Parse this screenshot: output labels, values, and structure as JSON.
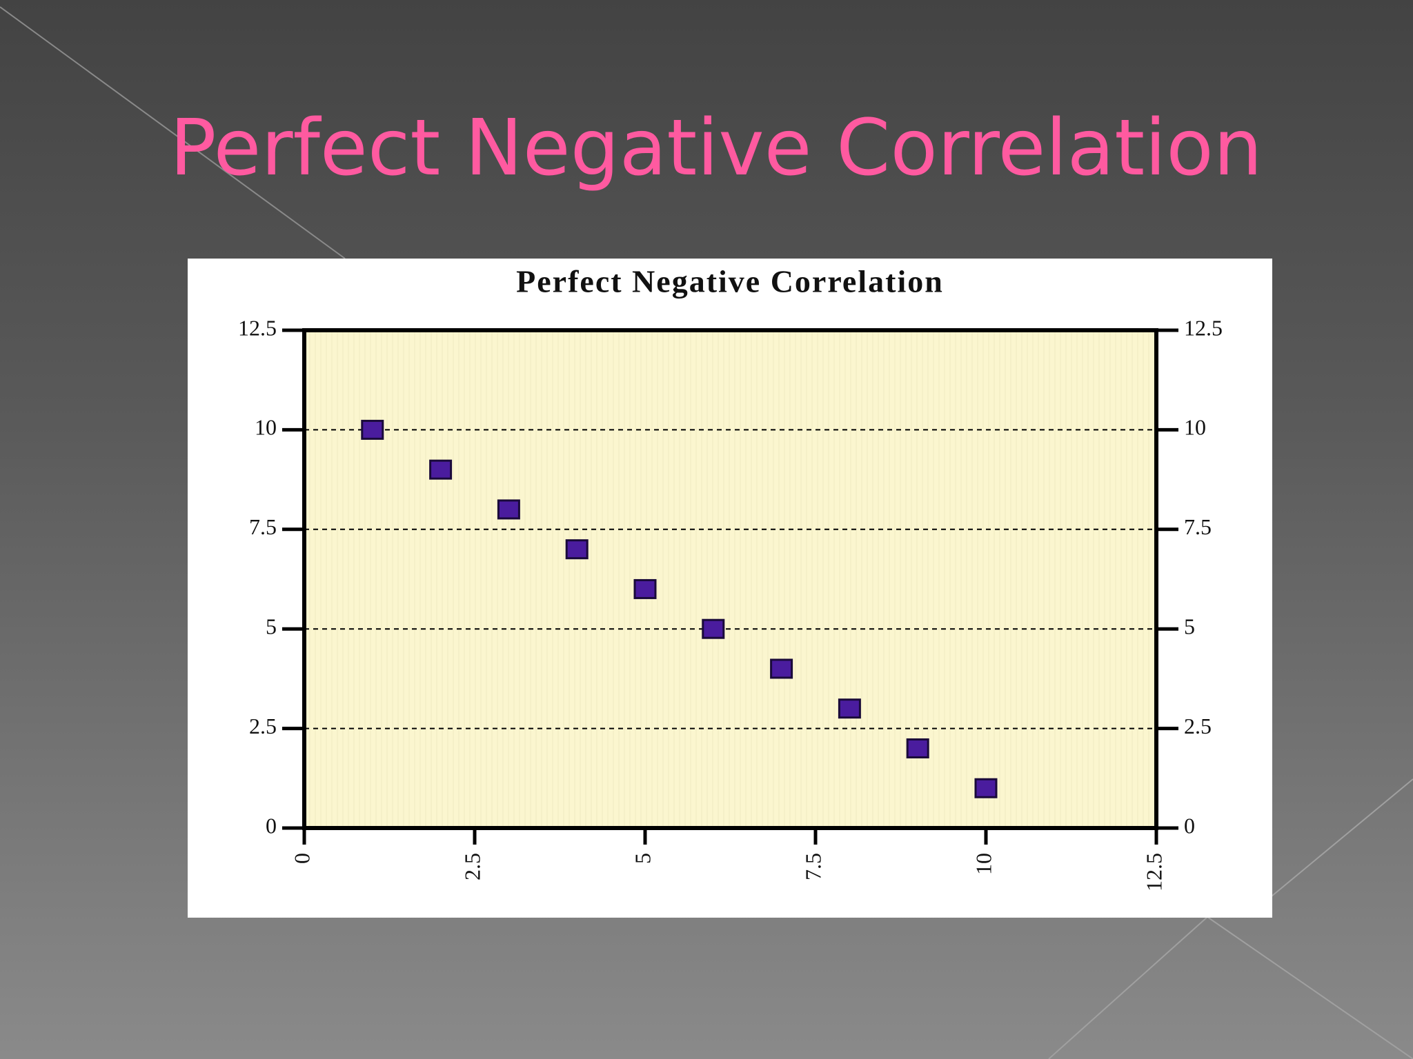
{
  "slide_title": "Perfect Negative Correlation",
  "chart_data": {
    "type": "scatter",
    "title": "Perfect Negative Correlation",
    "x": [
      1,
      2,
      3,
      4,
      5,
      6,
      7,
      8,
      9,
      10
    ],
    "values": [
      10,
      9,
      8,
      7,
      6,
      5,
      4,
      3,
      2,
      1
    ],
    "color": "#4a1c9e",
    "xlim": [
      0,
      12.5
    ],
    "xticks": [
      0,
      2.5,
      5,
      7.5,
      10,
      12.5
    ],
    "ylim": [
      0,
      12.5
    ],
    "yticks": [
      0,
      2.5,
      5,
      7.5,
      10,
      12.5
    ],
    "y2lim": [
      0,
      12.5
    ],
    "y2ticks": [
      0,
      2.5,
      5,
      7.5,
      10,
      12.5
    ],
    "grid": true
  }
}
